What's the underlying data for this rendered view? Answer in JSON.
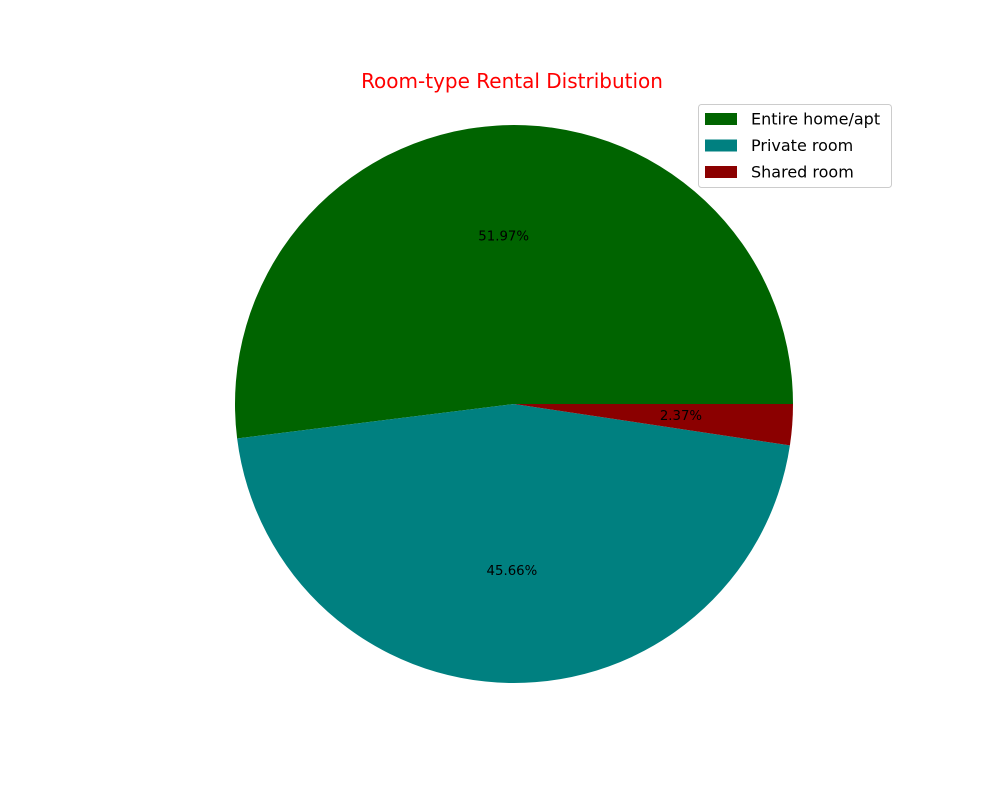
{
  "chart_data": {
    "type": "pie",
    "title": "Room-type Rental Distribution",
    "title_color": "#ff0000",
    "categories": [
      "Entire home/apt",
      "Private room",
      "Shared room"
    ],
    "values": [
      51.97,
      45.66,
      2.37
    ],
    "value_labels": [
      "51.97%",
      "45.66%",
      "2.37%"
    ],
    "colors": [
      "#006400",
      "#008080",
      "#8b0000"
    ],
    "legend_position": "top-right",
    "start_angle_deg": 0,
    "direction": "counterclockwise"
  }
}
